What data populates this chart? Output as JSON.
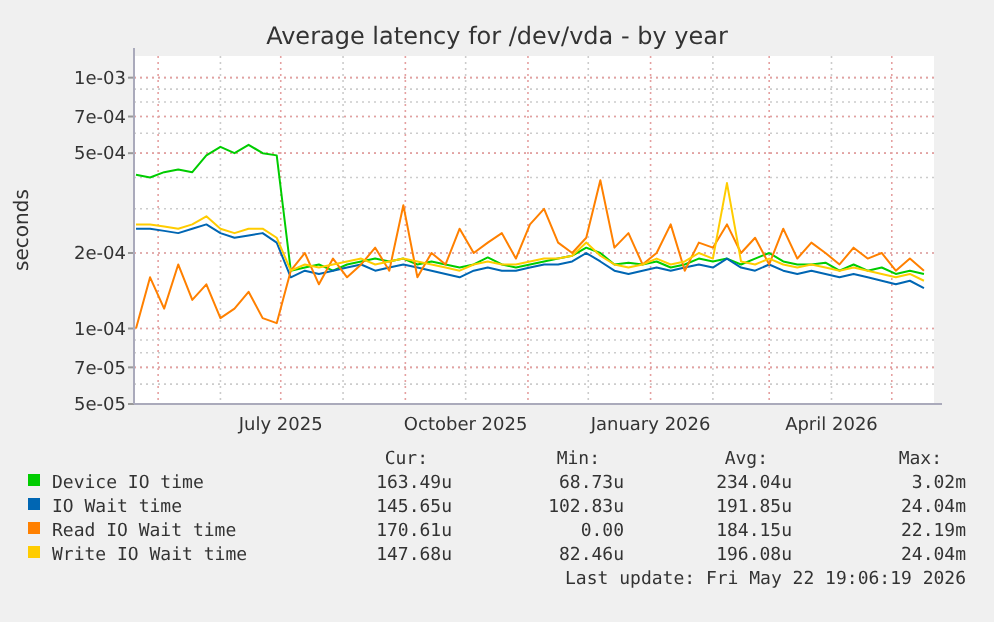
{
  "chart_data": {
    "type": "line",
    "title": "Average latency for /dev/vda - by year",
    "ylabel": "seconds",
    "log": "y",
    "grid": true,
    "legend": "bottom",
    "marker": "none",
    "line_style": "solid",
    "xlim": [
      "2025-04-19",
      "2026-05-22"
    ],
    "xticks": [
      {
        "value": "2025-07-01",
        "label": "July 2025"
      },
      {
        "value": "2025-10-01",
        "label": "October 2025"
      },
      {
        "value": "2026-01-01",
        "label": "January 2026"
      },
      {
        "value": "2026-04-01",
        "label": "April 2026"
      }
    ],
    "ylim": [
      5e-05,
      0.00122
    ],
    "yticks": [
      {
        "value": 5e-05,
        "label": "5e-05"
      },
      {
        "value": 7e-05,
        "label": "7e-05"
      },
      {
        "value": 0.0001,
        "label": "1e-04"
      },
      {
        "value": 0.0002,
        "label": "2e-04"
      },
      {
        "value": 0.0005,
        "label": "5e-04"
      },
      {
        "value": 0.0007,
        "label": "7e-04"
      },
      {
        "value": 0.001,
        "label": "1e-03"
      }
    ],
    "x": [
      "2025-04-20",
      "2025-04-27",
      "2025-05-04",
      "2025-05-11",
      "2025-05-18",
      "2025-05-25",
      "2025-06-01",
      "2025-06-08",
      "2025-06-15",
      "2025-06-22",
      "2025-06-29",
      "2025-07-06",
      "2025-07-13",
      "2025-07-20",
      "2025-07-27",
      "2025-08-03",
      "2025-08-10",
      "2025-08-17",
      "2025-08-24",
      "2025-08-31",
      "2025-09-07",
      "2025-09-14",
      "2025-09-21",
      "2025-09-28",
      "2025-10-05",
      "2025-10-12",
      "2025-10-19",
      "2025-10-26",
      "2025-11-02",
      "2025-11-09",
      "2025-11-16",
      "2025-11-23",
      "2025-11-30",
      "2025-12-07",
      "2025-12-14",
      "2025-12-21",
      "2025-12-28",
      "2026-01-04",
      "2026-01-11",
      "2026-01-18",
      "2026-01-25",
      "2026-02-01",
      "2026-02-08",
      "2026-02-15",
      "2026-02-22",
      "2026-03-01",
      "2026-03-08",
      "2026-03-15",
      "2026-03-22",
      "2026-03-29",
      "2026-04-05",
      "2026-04-12",
      "2026-04-19",
      "2026-04-26",
      "2026-05-03",
      "2026-05-10",
      "2026-05-17"
    ],
    "series": [
      {
        "name": "Device IO time",
        "color": "#00cc00",
        "values": [
          0.00041,
          0.0004,
          0.00042,
          0.00043,
          0.00042,
          0.00049,
          0.00053,
          0.0005,
          0.00054,
          0.0005,
          0.00049,
          0.00017,
          0.000175,
          0.00018,
          0.00017,
          0.00018,
          0.000185,
          0.00019,
          0.000185,
          0.00019,
          0.00018,
          0.000185,
          0.00018,
          0.000175,
          0.00018,
          0.000192,
          0.00018,
          0.000175,
          0.00018,
          0.000185,
          0.00019,
          0.000195,
          0.00021,
          0.0002,
          0.00018,
          0.000183,
          0.00018,
          0.000185,
          0.000175,
          0.00018,
          0.00019,
          0.000185,
          0.00019,
          0.00018,
          0.00019,
          0.0002,
          0.000185,
          0.00018,
          0.00018,
          0.000183,
          0.00017,
          0.00018,
          0.00017,
          0.000175,
          0.000165,
          0.00017,
          0.000165
        ]
      },
      {
        "name": "IO Wait time",
        "color": "#0066b3",
        "values": [
          0.00025,
          0.00025,
          0.000245,
          0.00024,
          0.00025,
          0.00026,
          0.00024,
          0.00023,
          0.000235,
          0.00024,
          0.00022,
          0.00016,
          0.00017,
          0.000165,
          0.00017,
          0.000175,
          0.00018,
          0.00017,
          0.000175,
          0.00018,
          0.000175,
          0.00017,
          0.000165,
          0.00016,
          0.00017,
          0.000175,
          0.00017,
          0.00017,
          0.000175,
          0.00018,
          0.00018,
          0.000185,
          0.0002,
          0.000185,
          0.00017,
          0.000165,
          0.00017,
          0.000175,
          0.00017,
          0.000175,
          0.00018,
          0.000175,
          0.00019,
          0.000175,
          0.00017,
          0.00018,
          0.00017,
          0.000165,
          0.00017,
          0.000165,
          0.00016,
          0.000165,
          0.00016,
          0.000155,
          0.00015,
          0.000155,
          0.000145
        ]
      },
      {
        "name": "Read IO Wait time",
        "color": "#ff8000",
        "values": [
          0.0001,
          0.00016,
          0.00012,
          0.00018,
          0.00013,
          0.00015,
          0.00011,
          0.00012,
          0.00014,
          0.00011,
          0.000105,
          0.00017,
          0.0002,
          0.00015,
          0.00019,
          0.00016,
          0.00018,
          0.00021,
          0.00017,
          0.00031,
          0.00016,
          0.0002,
          0.00018,
          0.00025,
          0.0002,
          0.00022,
          0.00024,
          0.00019,
          0.00026,
          0.0003,
          0.00022,
          0.0002,
          0.00023,
          0.00039,
          0.00021,
          0.00024,
          0.00018,
          0.0002,
          0.00026,
          0.00017,
          0.00022,
          0.00021,
          0.00026,
          0.0002,
          0.00023,
          0.00018,
          0.00025,
          0.00019,
          0.00022,
          0.0002,
          0.00018,
          0.00021,
          0.00019,
          0.0002,
          0.00017,
          0.00019,
          0.00017
        ]
      },
      {
        "name": "Write IO Wait time",
        "color": "#ffcc00",
        "values": [
          0.00026,
          0.00026,
          0.000255,
          0.00025,
          0.00026,
          0.00028,
          0.00025,
          0.00024,
          0.00025,
          0.00025,
          0.00023,
          0.00017,
          0.00018,
          0.000175,
          0.00018,
          0.000185,
          0.00019,
          0.00018,
          0.000185,
          0.00019,
          0.000185,
          0.00018,
          0.000175,
          0.00017,
          0.00018,
          0.000185,
          0.00018,
          0.00018,
          0.000185,
          0.00019,
          0.00019,
          0.000195,
          0.00022,
          0.000195,
          0.00018,
          0.000175,
          0.00018,
          0.00019,
          0.00018,
          0.000185,
          0.0002,
          0.00019,
          0.00038,
          0.000185,
          0.00018,
          0.00019,
          0.00018,
          0.000175,
          0.00018,
          0.000175,
          0.00017,
          0.000175,
          0.00017,
          0.000165,
          0.00016,
          0.000165,
          0.000155
        ]
      }
    ],
    "annotations": [
      "Cur:",
      "Min:",
      "Avg:",
      "Max:",
      "163.49u",
      "68.73u",
      "234.04u",
      "3.02m",
      "145.65u",
      "102.83u",
      "191.85u",
      "24.04m",
      "170.61u",
      "0.00",
      "184.15u",
      "22.19m",
      "147.68u",
      "82.46u",
      "196.08u",
      "24.04m",
      "Last update: Fri May 22 19:06:19 2026"
    ]
  }
}
